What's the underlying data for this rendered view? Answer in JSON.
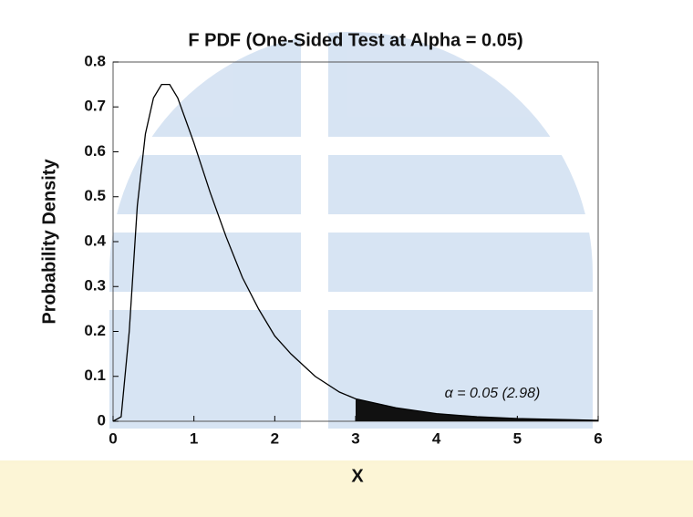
{
  "chart_data": {
    "type": "line",
    "title": "F PDF (One-Sided Test at Alpha = 0.05)",
    "x_label": "X",
    "y_label": "Probability Density",
    "annotation": "α = 0.05 (2.98)",
    "shade_from": 2.98,
    "x": [
      0,
      0.1,
      0.2,
      0.3,
      0.4,
      0.5,
      0.6,
      0.7,
      0.8,
      0.9,
      1.0,
      1.2,
      1.4,
      1.6,
      1.8,
      2.0,
      2.2,
      2.5,
      2.8,
      3.0,
      3.5,
      4.0,
      4.5,
      5.0,
      5.5,
      6.0
    ],
    "series": [
      {
        "color": "#000000",
        "values": [
          0,
          0.01,
          0.2,
          0.48,
          0.64,
          0.72,
          0.75,
          0.75,
          0.72,
          0.67,
          0.62,
          0.51,
          0.41,
          0.32,
          0.25,
          0.19,
          0.15,
          0.1,
          0.065,
          0.05,
          0.03,
          0.017,
          0.01,
          0.006,
          0.004,
          0.002
        ]
      }
    ],
    "shade_color": "#111111",
    "xlim": [
      0,
      6
    ],
    "xticks": [
      0,
      1,
      2,
      3,
      4,
      5,
      6
    ],
    "ylim": [
      0,
      0.8
    ],
    "yticks": [
      0,
      0.1,
      0.2,
      0.3,
      0.4,
      0.5,
      0.6,
      0.7,
      0.8
    ]
  }
}
